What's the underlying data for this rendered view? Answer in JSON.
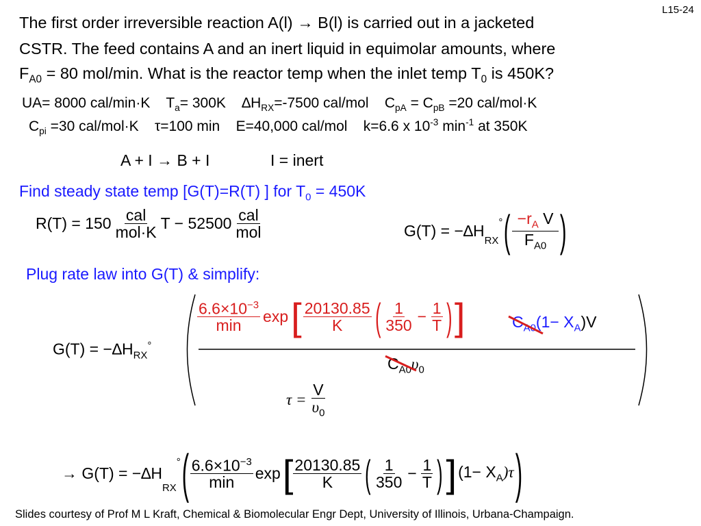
{
  "slide_number": "L15-24",
  "problem": {
    "line1_a": "The first order irreversible reaction A(l) ",
    "arrow": "→",
    "line1_b": " B(l) is carried out in a jacketed",
    "line2": "CSTR.  The feed contains A and an inert liquid in equimolar amounts, where",
    "line3_a": "F",
    "line3_sub": "A0",
    "line3_b": " = 80 mol/min.  What is the reactor temp when the inlet temp T",
    "line3_sub2": "0",
    "line3_c": " is 450K?"
  },
  "params": {
    "ua": "UA= 8000 cal/min·K",
    "ta_a": "T",
    "ta_sub": "a",
    "ta_b": "= 300K",
    "dh_a": "∆H",
    "dh_sub": "RX",
    "dh_b": "=-7500 cal/mol",
    "cp_a": "C",
    "cp_sub1": "pA",
    "cp_b": " = C",
    "cp_sub2": "pB",
    "cp_c": " =20 cal/mol·K",
    "cpi_a": "C",
    "cpi_sub": "pi",
    "cpi_b": " =30 cal/mol·K",
    "tau": "τ=100 min",
    "e": "E=40,000 cal/mol",
    "k_a": "k=6.6 x 10",
    "k_sup1": "-3",
    "k_b": " min",
    "k_sup2": "-1",
    "k_c": " at 350K"
  },
  "reaction": {
    "equation": "A + I → B + I",
    "note": "I = inert"
  },
  "headings": {
    "find_a": "Find steady state temp [G(T)=R(T) ] for T",
    "find_sub": "0",
    "find_b": " = 450K",
    "plug": "Plug rate law into G(T) & simplify:"
  },
  "eq_r": {
    "lhs": "R(T) = 150",
    "u_num": "cal",
    "u_den": "mol·K",
    "mid": "T − 52500",
    "u2_num": "cal",
    "u2_den": "mol"
  },
  "eq_g": {
    "lhs": "G(T) = −∆H",
    "sub": "RX",
    "deg": "°",
    "num_a": "−r",
    "num_sub": "A",
    "num_b": " V",
    "den": "F",
    "den_sub": "A0"
  },
  "eq_g2": {
    "lhs": "G(T) = −∆H",
    "sub": "RX",
    "deg": "°",
    "k_num": "6.6×10",
    "k_sup": "−3",
    "k_den": "min",
    "exp": "exp",
    "e_num": "20130.85",
    "e_den": "K",
    "one1": "1",
    "d1": "350",
    "minus": "−",
    "one2": "1",
    "d2": "T",
    "c": "C",
    "c_sub": "A0",
    "x_a": "(1− X",
    "x_sub": "A",
    "x_b": ")V",
    "den_c": "C",
    "den_sub": "A0",
    "den_v": "υ",
    "den_vsub": "0"
  },
  "eq_tau": {
    "lhs": "τ =",
    "num": "V",
    "den": "υ",
    "den_sub": "0"
  },
  "eq_g3": {
    "arrow": "→ G(T) = −∆H",
    "sub": "RX",
    "deg": "°",
    "k_num": "6.6×10",
    "k_sup": "−3",
    "k_den": "min",
    "exp": "exp",
    "e_num": "20130.85",
    "e_den": "K",
    "one1": "1",
    "d1": "350",
    "minus": "−",
    "one2": "1",
    "d2": "T",
    "x_a": "(1− X",
    "x_sub": "A",
    "x_b": ")τ"
  },
  "footer": "Slides courtesy of Prof M L Kraft, Chemical & Biomolecular Engr Dept, University of Illinois, Urbana-Champaign.",
  "colors": {
    "red": "#d81e1e",
    "blue": "#1a1aff",
    "text": "#000000"
  }
}
